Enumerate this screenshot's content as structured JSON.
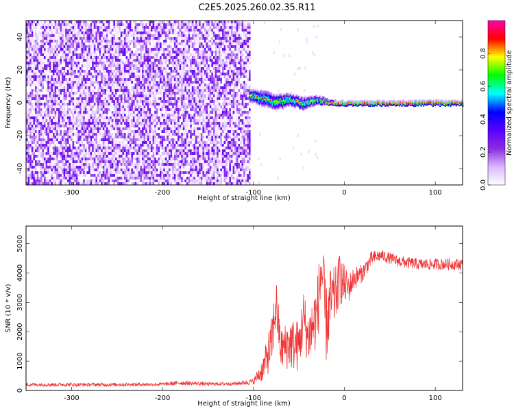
{
  "title": "C2E5.2025.260.02.35.R11",
  "chart_data": [
    {
      "type": "heatmap",
      "xlabel": "Height of straight line (km)",
      "ylabel": "Frequency (Hz)",
      "xlim": [
        -350,
        130
      ],
      "ylim": [
        -50,
        50
      ],
      "xticks": [
        -300,
        -200,
        -100,
        0,
        100
      ],
      "yticks": [
        -40,
        -20,
        0,
        20,
        40
      ],
      "colorbar": {
        "label": "Normalized spectral amplitude",
        "range": [
          0,
          1
        ],
        "ticks": [
          0.0,
          0.2,
          0.4,
          0.6,
          0.8
        ],
        "tick_labels": [
          "0.0",
          "0.2",
          "0.4",
          "0.6",
          "0.8"
        ],
        "colormap": [
          "#ffffff",
          "#d9b8ff",
          "#8a2be2",
          "#5a00ff",
          "#0000ff",
          "#00ffff",
          "#00ff00",
          "#ffff00",
          "#ff0000",
          "#ff00aa"
        ]
      },
      "regions": [
        {
          "description": "noise",
          "x_range": [
            -350,
            -105
          ],
          "f_range": [
            -50,
            50
          ],
          "amplitude": 0.15
        },
        {
          "description": "signal band",
          "x_range": [
            -105,
            130
          ],
          "f_center": [
            2,
            0.5
          ],
          "amplitude": 0.9
        }
      ],
      "signal_track": {
        "x": [
          -105,
          -90,
          -75,
          -60,
          -45,
          -30,
          -20,
          -10,
          0,
          20,
          40,
          60,
          80,
          100,
          130
        ],
        "f_center": [
          5,
          3,
          1,
          2,
          0,
          2,
          1,
          0,
          0,
          0,
          0,
          0,
          0,
          0,
          0
        ],
        "f_width": [
          4,
          5,
          5,
          4,
          4,
          3,
          2,
          1.5,
          1.5,
          1.5,
          1.5,
          1.5,
          1.5,
          1.5,
          1.5
        ]
      }
    },
    {
      "type": "line",
      "xlabel": "Height of straight line (km)",
      "ylabel": "SNR (10 * v/v)",
      "xlim": [
        -350,
        130
      ],
      "ylim": [
        0,
        5600
      ],
      "xticks": [
        -300,
        -200,
        -100,
        0,
        100
      ],
      "yticks": [
        0,
        1000,
        2000,
        3000,
        4000,
        5000
      ],
      "color": "#f03232",
      "series": [
        {
          "x": [
            -350,
            -300,
            -250,
            -200,
            -180,
            -150,
            -120,
            -100,
            -90,
            -80,
            -75,
            -70,
            -60,
            -50,
            -45,
            -40,
            -35,
            -30,
            -25,
            -20,
            -15,
            -10,
            -5,
            0,
            5,
            10,
            20,
            30,
            40,
            50,
            60,
            80,
            100,
            130
          ],
          "y": [
            200,
            200,
            200,
            210,
            260,
            220,
            230,
            300,
            700,
            1600,
            3000,
            1400,
            1600,
            1500,
            2500,
            1800,
            2200,
            2600,
            4200,
            2200,
            3000,
            3200,
            3800,
            3600,
            3500,
            3800,
            4000,
            4500,
            4600,
            4500,
            4400,
            4300,
            4300,
            4300
          ],
          "amplitude": [
            60,
            60,
            60,
            60,
            80,
            60,
            60,
            100,
            400,
            900,
            900,
            700,
            900,
            900,
            1000,
            900,
            1100,
            1200,
            1300,
            1300,
            1200,
            1000,
            900,
            700,
            500,
            400,
            300,
            250,
            200,
            200,
            200,
            200,
            200,
            200
          ]
        }
      ]
    }
  ]
}
